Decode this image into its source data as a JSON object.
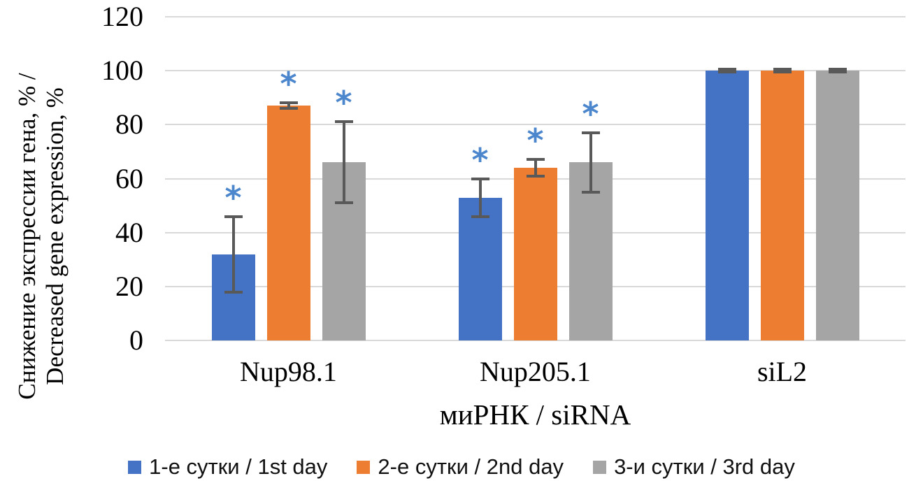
{
  "chart_data": {
    "type": "bar",
    "title": "",
    "xlabel": "миРНК / siRNA",
    "ylabel": "Снижение экспрессии гена, % / Decreased gene expression, %",
    "ylabel_lines": [
      "Снижение экспрессии гена, % /",
      "Decreased gene expression, %"
    ],
    "ylim": [
      0,
      120
    ],
    "yticks": [
      0,
      20,
      40,
      60,
      80,
      100,
      120
    ],
    "grid": true,
    "legend_position": "bottom",
    "categories": [
      "Nup98.1",
      "Nup205.1",
      "siL2"
    ],
    "series": [
      {
        "name": "1-е сутки / 1st day",
        "color": "#4472C4",
        "values": [
          32,
          53,
          100
        ],
        "errors": [
          14,
          7,
          0.5
        ],
        "significant": [
          true,
          true,
          false
        ]
      },
      {
        "name": "2-е сутки / 2nd day",
        "color": "#ED7D31",
        "values": [
          87,
          64,
          100
        ],
        "errors": [
          1,
          3,
          0.5
        ],
        "significant": [
          true,
          true,
          false
        ]
      },
      {
        "name": "3-и сутки / 3rd day",
        "color": "#A5A5A5",
        "values": [
          66,
          66,
          100
        ],
        "errors": [
          15,
          11,
          0.5
        ],
        "significant": [
          true,
          true,
          false
        ]
      }
    ],
    "significance_marker": "*",
    "colors": {
      "significance": "#4C86CC",
      "gridline": "#D9D9D9",
      "error_bar": "#595959",
      "text": "#000000"
    }
  }
}
